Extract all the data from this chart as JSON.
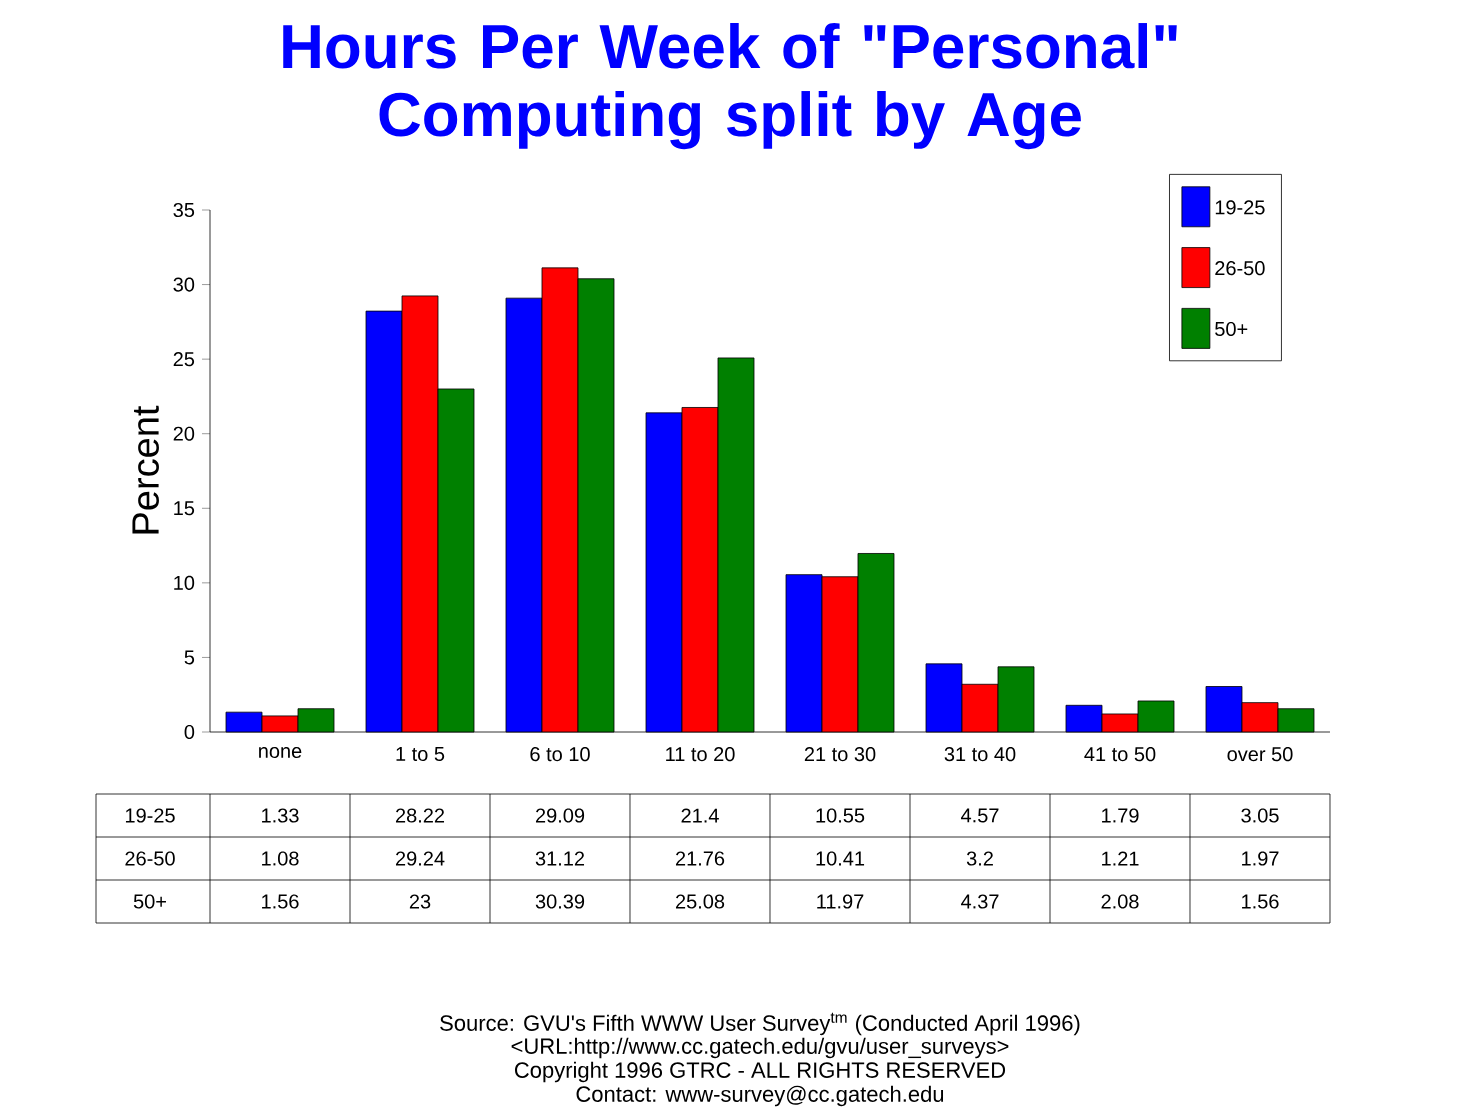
{
  "chart_data": {
    "type": "bar",
    "title": "Hours Per Week of \"Personal\" Computing split by Age",
    "ylabel": "Percent",
    "categories": [
      "none",
      "1 to 5",
      "6 to 10",
      "11 to 20",
      "21 to 30",
      "31 to 40",
      "41 to 50",
      "over 50"
    ],
    "series": [
      {
        "name": "19-25",
        "color": "#0000ff",
        "values": [
          1.33,
          28.22,
          29.09,
          21.4,
          10.55,
          4.57,
          1.79,
          3.05
        ]
      },
      {
        "name": "26-50",
        "color": "#ff0000",
        "values": [
          1.08,
          29.24,
          31.12,
          21.76,
          10.41,
          3.2,
          1.21,
          1.97
        ]
      },
      {
        "name": "50+",
        "color": "#008000",
        "values": [
          1.56,
          23,
          30.39,
          25.08,
          11.97,
          4.37,
          2.08,
          1.56
        ]
      }
    ],
    "ylim": [
      0,
      35
    ],
    "yticks": [
      0,
      5,
      10,
      15,
      20,
      25,
      30,
      35
    ],
    "data_labels": true,
    "legend": "top right",
    "grid": false,
    "annotations": [
      "Source: GVU's Fifth WWW User Survey$^{tm}$  (Conducted April 1996)",
      "<URL:http://www.cc.gatech.edu/gvu/user_surveys>",
      "Copyright 1996 GTRC -  ALL RIGHTS RESERVED",
      "Contact: www-survey@cc.gatech.edu"
    ]
  }
}
